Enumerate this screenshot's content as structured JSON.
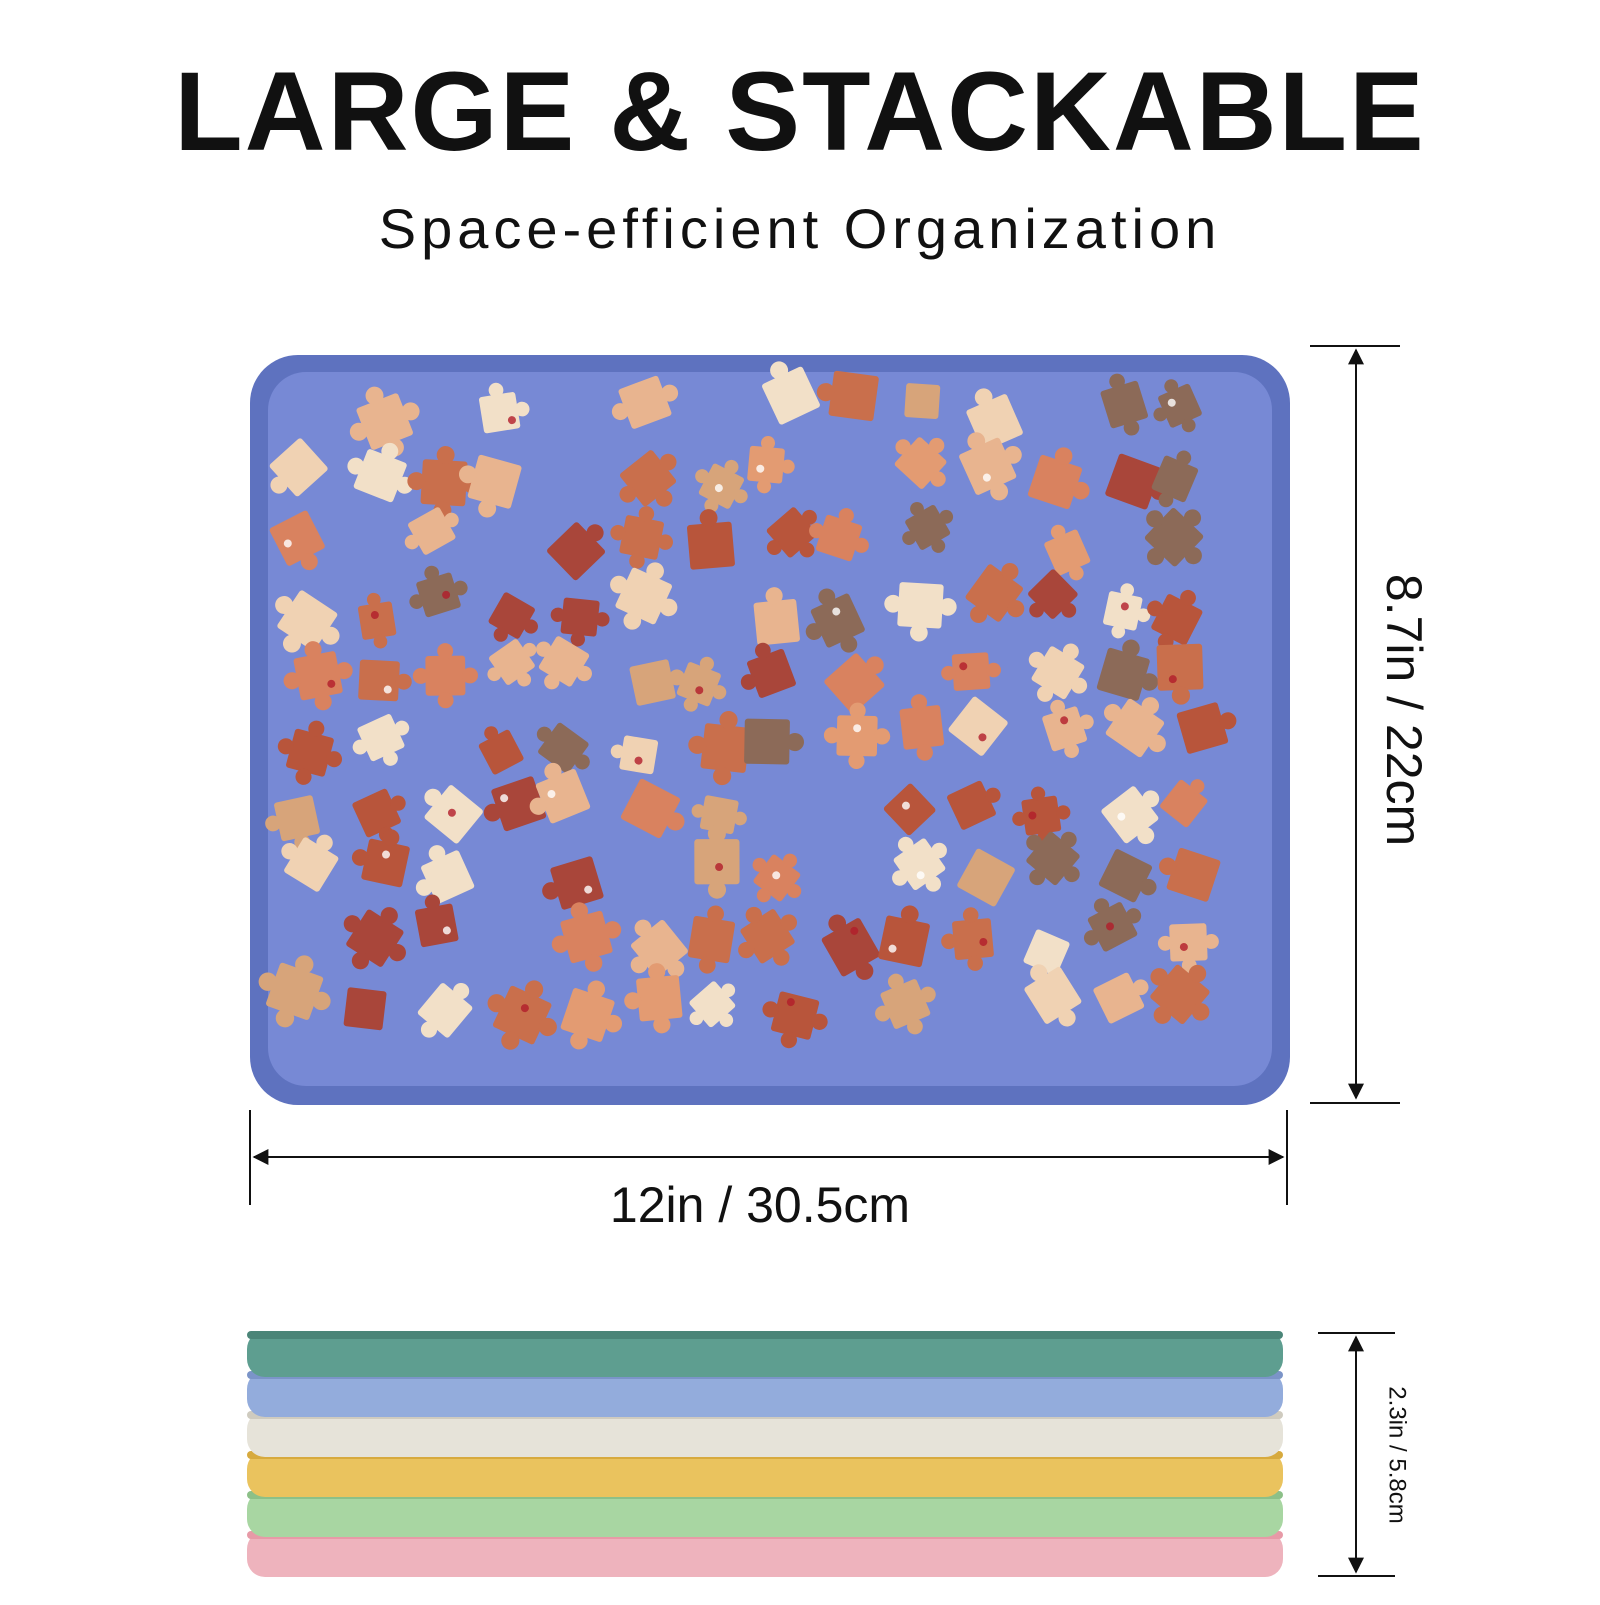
{
  "header": {
    "title": "LARGE & STACKABLE",
    "subtitle": "Space-efficient Organization"
  },
  "dimensions": {
    "height": "8.7in / 22cm",
    "width": "12in / 30.5cm",
    "stack_height": "2.3in / 5.8cm"
  }
}
